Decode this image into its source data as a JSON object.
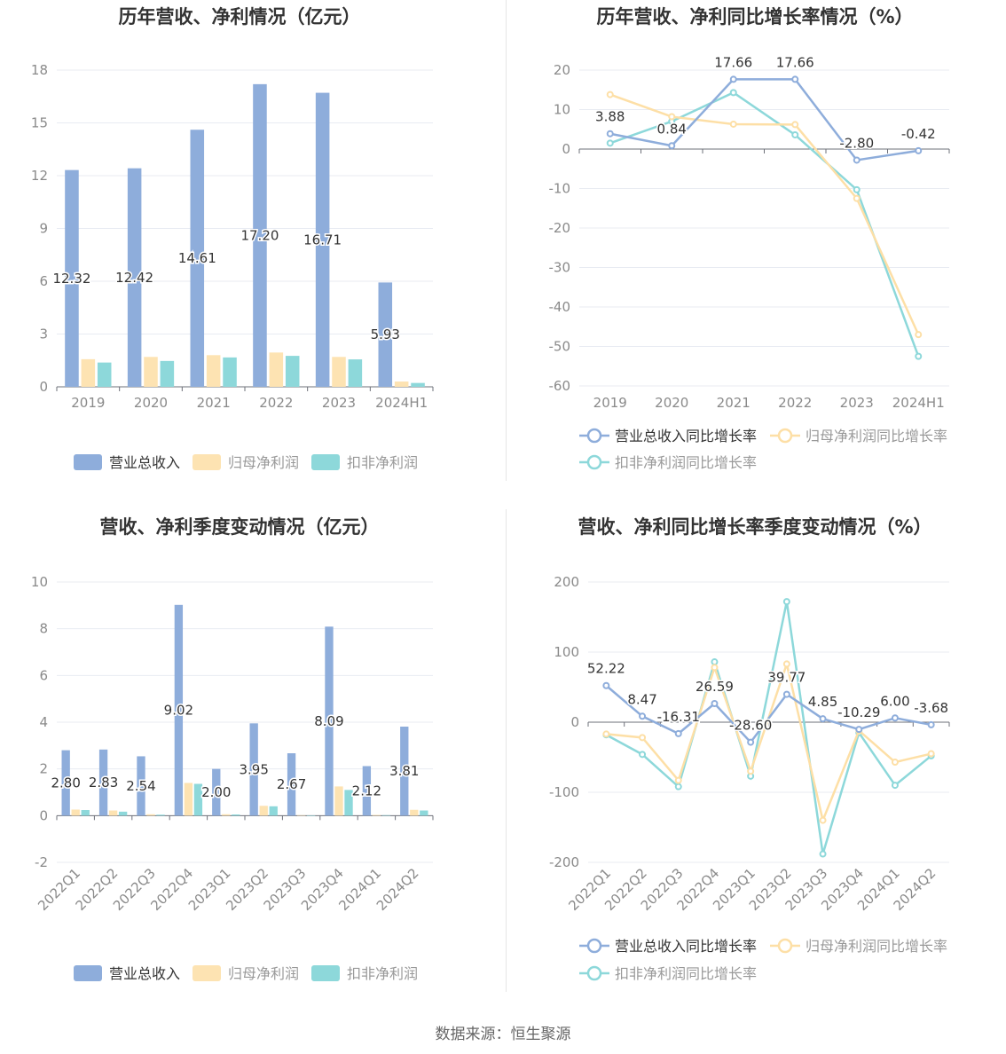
{
  "colors": {
    "revenue": "#8eaddb",
    "net_profit": "#fde3b2",
    "deducted_profit": "#8dd8da",
    "revenue_line": "#8eaddb",
    "net_line": "#fddfa6",
    "deducted_line": "#8dd8da",
    "title": "#333333",
    "axis_text": "#8a8a8a",
    "grid": "#e8ebf2"
  },
  "source": "数据来源：恒生聚源",
  "chart_data": [
    {
      "type": "bar",
      "title": "历年营收、净利情况（亿元）",
      "categories": [
        "2019",
        "2020",
        "2021",
        "2022",
        "2023",
        "2024H1"
      ],
      "ylim": [
        0,
        18
      ],
      "yticks": [
        0,
        3,
        6,
        9,
        12,
        15,
        18
      ],
      "legend_position": "bottom",
      "series": [
        {
          "name": "营业总收入",
          "values": [
            12.32,
            12.42,
            14.61,
            17.2,
            16.71,
            5.93
          ],
          "labels": [
            "12.32",
            "12.42",
            "14.61",
            "17.20",
            "16.71",
            "5.93"
          ]
        },
        {
          "name": "归母净利润",
          "values": [
            1.57,
            1.7,
            1.8,
            1.95,
            1.7,
            0.3
          ]
        },
        {
          "name": "扣非净利润",
          "values": [
            1.38,
            1.47,
            1.67,
            1.76,
            1.56,
            0.22
          ]
        }
      ]
    },
    {
      "type": "line",
      "title": "历年营收、净利同比增长率情况（%）",
      "categories": [
        "2019",
        "2020",
        "2021",
        "2022",
        "2023",
        "2024H1"
      ],
      "ylim": [
        -60,
        20
      ],
      "yticks": [
        -60,
        -50,
        -40,
        -30,
        -20,
        -10,
        0,
        10,
        20
      ],
      "legend_position": "bottom",
      "series": [
        {
          "name": "营业总收入同比增长率",
          "values": [
            3.88,
            0.84,
            17.66,
            17.66,
            -2.8,
            -0.42
          ],
          "labels": [
            "3.88",
            "0.84",
            "17.66",
            "17.66",
            "-2.80",
            "-0.42"
          ]
        },
        {
          "name": "归母净利润同比增长率",
          "values": [
            13.8,
            8.2,
            6.3,
            6.2,
            -12.5,
            -47.0
          ]
        },
        {
          "name": "扣非净利润同比增长率",
          "values": [
            1.5,
            7.0,
            14.3,
            3.6,
            -10.3,
            -52.5
          ]
        }
      ]
    },
    {
      "type": "bar",
      "title": "营收、净利季度变动情况（亿元）",
      "categories": [
        "2022Q1",
        "2022Q2",
        "2022Q3",
        "2022Q4",
        "2023Q1",
        "2023Q2",
        "2023Q3",
        "2023Q4",
        "2024Q1",
        "2024Q2"
      ],
      "ylim": [
        -2,
        10
      ],
      "yticks": [
        -2,
        0,
        2,
        4,
        6,
        8,
        10
      ],
      "legend_position": "bottom",
      "series": [
        {
          "name": "营业总收入",
          "values": [
            2.8,
            2.83,
            2.54,
            9.02,
            2.0,
            3.95,
            2.67,
            8.09,
            2.12,
            3.81
          ],
          "labels": [
            "2.80",
            "2.83",
            "2.54",
            "9.02",
            "2.00",
            "3.95",
            "2.67",
            "8.09",
            "2.12",
            "3.81"
          ]
        },
        {
          "name": "归母净利润",
          "values": [
            0.26,
            0.22,
            0.06,
            1.4,
            0.06,
            0.42,
            0.02,
            1.25,
            0.03,
            0.25
          ]
        },
        {
          "name": "扣非净利润",
          "values": [
            0.24,
            0.17,
            0.04,
            1.36,
            0.05,
            0.4,
            0.01,
            1.1,
            0.02,
            0.22
          ]
        }
      ]
    },
    {
      "type": "line",
      "title": "营收、净利同比增长率季度变动情况（%）",
      "categories": [
        "2022Q1",
        "2022Q2",
        "2022Q3",
        "2022Q4",
        "2023Q1",
        "2023Q2",
        "2023Q3",
        "2023Q4",
        "2024Q1",
        "2024Q2"
      ],
      "ylim": [
        -200,
        200
      ],
      "yticks": [
        -200,
        -100,
        0,
        100,
        200
      ],
      "legend_position": "bottom",
      "series": [
        {
          "name": "营业总收入同比增长率",
          "values": [
            52.22,
            8.47,
            -16.31,
            26.59,
            -28.6,
            39.77,
            4.85,
            -10.29,
            6.0,
            -3.68
          ],
          "labels": [
            "52.22",
            "8.47",
            "-16.31",
            "26.59",
            "-28.60",
            "39.77",
            "4.85",
            "-10.29",
            "6.00",
            "-3.68"
          ]
        },
        {
          "name": "归母净利润同比增长率",
          "values": [
            -17,
            -22,
            -83,
            78,
            -70,
            83,
            -140,
            -12,
            -57,
            -45
          ]
        },
        {
          "name": "扣非净利润同比增长率",
          "values": [
            -18,
            -46,
            -92,
            86,
            -77,
            172,
            -188,
            -15,
            -90,
            -48
          ]
        }
      ]
    }
  ]
}
